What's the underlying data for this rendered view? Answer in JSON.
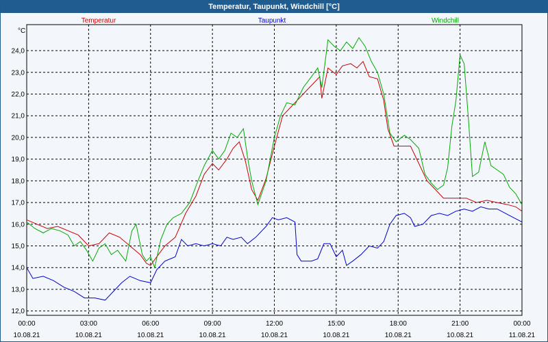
{
  "window": {
    "title": "Temperatur, Taupunkt, Windchill [°C]"
  },
  "colors": {
    "temperatur": "#cc0000",
    "taupunkt": "#0000cc",
    "windchill": "#00aa00"
  },
  "chart_data": {
    "type": "line",
    "title": "Temperatur, Taupunkt, Windchill [°C]",
    "ylabel": "°C",
    "ylim": [
      11.8,
      25.2
    ],
    "yticks": [
      "12,0",
      "13,0",
      "14,0",
      "15,0",
      "16,0",
      "17,0",
      "18,0",
      "19,0",
      "20,0",
      "21,0",
      "22,0",
      "23,0",
      "24,0"
    ],
    "xlim": [
      0,
      24
    ],
    "xticks": [
      {
        "time": "00:00",
        "date": "10.08.21"
      },
      {
        "time": "03:00",
        "date": "10.08.21"
      },
      {
        "time": "06:00",
        "date": "10.08.21"
      },
      {
        "time": "09:00",
        "date": "10.08.21"
      },
      {
        "time": "12:00",
        "date": "10.08.21"
      },
      {
        "time": "15:00",
        "date": "10.08.21"
      },
      {
        "time": "18:00",
        "date": "10.08.21"
      },
      {
        "time": "21:00",
        "date": "10.08.21"
      },
      {
        "time": "00:00",
        "date": "11.08.21"
      }
    ],
    "grid": true,
    "legend_position": "top",
    "series": [
      {
        "name": "Temperatur",
        "points": [
          [
            0,
            16.2
          ],
          [
            0.5,
            16.0
          ],
          [
            1.0,
            15.8
          ],
          [
            1.5,
            15.9
          ],
          [
            2.0,
            15.7
          ],
          [
            2.5,
            15.5
          ],
          [
            3.0,
            15.0
          ],
          [
            3.5,
            15.1
          ],
          [
            4.0,
            15.6
          ],
          [
            4.5,
            15.4
          ],
          [
            5.0,
            15.0
          ],
          [
            5.5,
            14.6
          ],
          [
            5.8,
            14.2
          ],
          [
            6.0,
            14.1
          ],
          [
            6.3,
            14.5
          ],
          [
            6.7,
            15.0
          ],
          [
            7.2,
            15.4
          ],
          [
            7.7,
            16.5
          ],
          [
            8.2,
            17.3
          ],
          [
            8.6,
            18.3
          ],
          [
            9.0,
            18.8
          ],
          [
            9.3,
            18.5
          ],
          [
            9.7,
            19.0
          ],
          [
            10.0,
            19.5
          ],
          [
            10.3,
            19.8
          ],
          [
            10.6,
            18.9
          ],
          [
            10.9,
            17.6
          ],
          [
            11.2,
            17.1
          ],
          [
            11.6,
            18.1
          ],
          [
            12.0,
            19.6
          ],
          [
            12.4,
            21.0
          ],
          [
            12.8,
            21.4
          ],
          [
            13.2,
            21.8
          ],
          [
            13.6,
            22.2
          ],
          [
            14.0,
            22.6
          ],
          [
            14.2,
            22.8
          ],
          [
            14.3,
            21.8
          ],
          [
            14.6,
            23.2
          ],
          [
            15.0,
            22.9
          ],
          [
            15.3,
            23.3
          ],
          [
            15.7,
            23.4
          ],
          [
            16.0,
            23.2
          ],
          [
            16.3,
            23.5
          ],
          [
            16.6,
            22.8
          ],
          [
            17.0,
            22.7
          ],
          [
            17.3,
            21.7
          ],
          [
            17.5,
            20.4
          ],
          [
            17.8,
            19.6
          ],
          [
            18.2,
            19.6
          ],
          [
            18.6,
            19.6
          ],
          [
            19.0,
            18.8
          ],
          [
            19.4,
            18.0
          ],
          [
            19.8,
            17.6
          ],
          [
            20.2,
            17.2
          ],
          [
            20.8,
            17.2
          ],
          [
            21.3,
            17.2
          ],
          [
            21.8,
            17.0
          ],
          [
            22.3,
            17.1
          ],
          [
            22.8,
            17.0
          ],
          [
            23.3,
            16.9
          ],
          [
            23.7,
            16.8
          ],
          [
            24.0,
            16.6
          ]
        ]
      },
      {
        "name": "Taupunkt",
        "points": [
          [
            0,
            14.0
          ],
          [
            0.3,
            13.5
          ],
          [
            0.8,
            13.6
          ],
          [
            1.3,
            13.4
          ],
          [
            1.8,
            13.1
          ],
          [
            2.3,
            12.9
          ],
          [
            2.8,
            12.6
          ],
          [
            3.3,
            12.6
          ],
          [
            3.8,
            12.5
          ],
          [
            4.2,
            12.9
          ],
          [
            4.6,
            13.3
          ],
          [
            5.0,
            13.6
          ],
          [
            5.5,
            13.4
          ],
          [
            6.0,
            13.3
          ],
          [
            6.3,
            13.9
          ],
          [
            6.7,
            14.3
          ],
          [
            7.2,
            14.5
          ],
          [
            7.5,
            15.3
          ],
          [
            7.8,
            15.0
          ],
          [
            8.2,
            15.1
          ],
          [
            8.6,
            15.0
          ],
          [
            9.0,
            15.1
          ],
          [
            9.4,
            15.0
          ],
          [
            9.7,
            15.4
          ],
          [
            10.0,
            15.3
          ],
          [
            10.4,
            15.4
          ],
          [
            10.7,
            15.1
          ],
          [
            11.1,
            15.4
          ],
          [
            11.6,
            15.9
          ],
          [
            11.9,
            16.3
          ],
          [
            12.2,
            16.2
          ],
          [
            12.6,
            16.3
          ],
          [
            13.0,
            16.1
          ],
          [
            13.1,
            14.6
          ],
          [
            13.3,
            14.3
          ],
          [
            13.8,
            14.3
          ],
          [
            14.1,
            14.4
          ],
          [
            14.4,
            15.1
          ],
          [
            14.7,
            15.1
          ],
          [
            15.0,
            14.5
          ],
          [
            15.3,
            14.8
          ],
          [
            15.5,
            14.1
          ],
          [
            15.8,
            14.3
          ],
          [
            16.2,
            14.6
          ],
          [
            16.6,
            15.0
          ],
          [
            17.0,
            14.9
          ],
          [
            17.3,
            15.2
          ],
          [
            17.6,
            16.0
          ],
          [
            17.9,
            16.4
          ],
          [
            18.3,
            16.5
          ],
          [
            18.6,
            16.3
          ],
          [
            18.8,
            15.9
          ],
          [
            19.2,
            16.0
          ],
          [
            19.6,
            16.4
          ],
          [
            20.0,
            16.5
          ],
          [
            20.4,
            16.4
          ],
          [
            20.8,
            16.6
          ],
          [
            21.2,
            16.7
          ],
          [
            21.6,
            16.6
          ],
          [
            22.0,
            16.8
          ],
          [
            22.4,
            16.7
          ],
          [
            22.8,
            16.7
          ],
          [
            23.2,
            16.5
          ],
          [
            23.6,
            16.3
          ],
          [
            24.0,
            16.1
          ]
        ]
      },
      {
        "name": "Windchill",
        "points": [
          [
            0,
            16.1
          ],
          [
            0.4,
            15.8
          ],
          [
            0.8,
            15.6
          ],
          [
            1.2,
            15.8
          ],
          [
            1.6,
            15.7
          ],
          [
            2.0,
            15.5
          ],
          [
            2.3,
            15.0
          ],
          [
            2.6,
            15.2
          ],
          [
            2.9,
            14.8
          ],
          [
            3.2,
            14.3
          ],
          [
            3.5,
            14.9
          ],
          [
            3.8,
            15.1
          ],
          [
            4.1,
            14.6
          ],
          [
            4.4,
            14.8
          ],
          [
            4.8,
            14.3
          ],
          [
            5.1,
            15.7
          ],
          [
            5.3,
            16.0
          ],
          [
            5.6,
            14.6
          ],
          [
            5.8,
            14.3
          ],
          [
            6.0,
            14.5
          ],
          [
            6.2,
            14.0
          ],
          [
            6.5,
            15.3
          ],
          [
            6.8,
            16.0
          ],
          [
            7.1,
            16.3
          ],
          [
            7.5,
            16.5
          ],
          [
            7.9,
            17.0
          ],
          [
            8.3,
            18.0
          ],
          [
            8.6,
            18.7
          ],
          [
            9.0,
            19.4
          ],
          [
            9.3,
            19.0
          ],
          [
            9.6,
            19.4
          ],
          [
            9.9,
            20.2
          ],
          [
            10.2,
            20.0
          ],
          [
            10.5,
            20.4
          ],
          [
            10.7,
            19.1
          ],
          [
            10.9,
            18.0
          ],
          [
            11.2,
            16.9
          ],
          [
            11.6,
            18.0
          ],
          [
            12.0,
            20.0
          ],
          [
            12.3,
            21.0
          ],
          [
            12.6,
            21.6
          ],
          [
            13.0,
            21.5
          ],
          [
            13.4,
            22.3
          ],
          [
            13.8,
            22.8
          ],
          [
            14.1,
            23.2
          ],
          [
            14.3,
            22.3
          ],
          [
            14.6,
            24.5
          ],
          [
            14.9,
            24.2
          ],
          [
            15.2,
            24.0
          ],
          [
            15.5,
            24.4
          ],
          [
            15.8,
            24.1
          ],
          [
            16.1,
            24.6
          ],
          [
            16.4,
            24.2
          ],
          [
            16.7,
            23.5
          ],
          [
            17.0,
            23.0
          ],
          [
            17.3,
            22.0
          ],
          [
            17.6,
            20.2
          ],
          [
            17.9,
            19.8
          ],
          [
            18.3,
            20.1
          ],
          [
            18.6,
            19.9
          ],
          [
            19.0,
            19.5
          ],
          [
            19.3,
            18.3
          ],
          [
            19.6,
            17.9
          ],
          [
            19.9,
            17.6
          ],
          [
            20.2,
            17.8
          ],
          [
            20.4,
            18.6
          ],
          [
            20.6,
            20.5
          ],
          [
            20.8,
            21.7
          ],
          [
            21.0,
            23.8
          ],
          [
            21.2,
            23.4
          ],
          [
            21.4,
            20.9
          ],
          [
            21.6,
            18.2
          ],
          [
            21.9,
            18.4
          ],
          [
            22.2,
            19.8
          ],
          [
            22.5,
            18.7
          ],
          [
            22.8,
            18.5
          ],
          [
            23.1,
            18.3
          ],
          [
            23.4,
            17.7
          ],
          [
            23.7,
            17.4
          ],
          [
            24.0,
            16.9
          ]
        ]
      }
    ]
  }
}
